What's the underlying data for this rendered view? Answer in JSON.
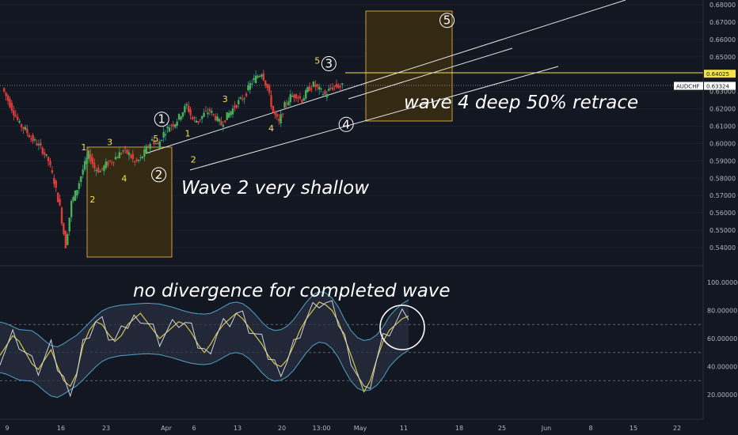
{
  "chart_data": [
    {
      "type": "candlestick",
      "symbol": "AUDCHF",
      "price_axis": {
        "ylim": [
          0.533,
          0.684
        ],
        "ticks": [
          "0.68000",
          "0.67000",
          "0.66000",
          "0.65000",
          "0.64000",
          "0.63000",
          "0.62000",
          "0.61000",
          "0.60000",
          "0.59000",
          "0.58000",
          "0.57000",
          "0.56000",
          "0.55000",
          "0.54000"
        ]
      },
      "price_tags": [
        {
          "value": "0.64025",
          "color": "#f2e24a"
        },
        {
          "label": "AUDCHF",
          "value": "0.63324",
          "color": "#ffffff"
        }
      ],
      "time_axis": {
        "ticks": [
          "9",
          "16",
          "23",
          "Apr",
          "6",
          "13",
          "20",
          "13:00",
          "May",
          "11",
          "18",
          "25",
          "Jun",
          "8",
          "15",
          "22"
        ]
      },
      "ohlc_path_days": [
        0,
        1,
        2,
        3,
        4,
        5,
        6,
        7,
        8,
        9,
        10,
        11,
        12,
        13,
        14,
        15,
        16,
        17,
        18,
        19,
        20,
        21,
        22,
        23,
        24,
        25,
        26,
        27,
        28,
        29,
        30,
        31,
        32,
        33,
        34,
        35,
        36,
        37,
        38,
        39,
        40,
        41,
        42,
        43,
        44,
        45,
        46,
        47,
        48,
        49,
        50,
        51,
        52,
        53,
        54,
        55,
        56,
        57,
        58,
        59
      ],
      "close_path": [
        0.632,
        0.625,
        0.618,
        0.611,
        0.608,
        0.603,
        0.6,
        0.596,
        0.59,
        0.578,
        0.563,
        0.541,
        0.566,
        0.574,
        0.585,
        0.594,
        0.586,
        0.584,
        0.588,
        0.59,
        0.593,
        0.596,
        0.594,
        0.589,
        0.591,
        0.597,
        0.602,
        0.599,
        0.606,
        0.61,
        0.612,
        0.617,
        0.622,
        0.614,
        0.613,
        0.617,
        0.619,
        0.615,
        0.611,
        0.616,
        0.62,
        0.624,
        0.627,
        0.634,
        0.638,
        0.641,
        0.632,
        0.618,
        0.612,
        0.622,
        0.627,
        0.628,
        0.625,
        0.631,
        0.634,
        0.631,
        0.628,
        0.632,
        0.633,
        0.633
      ],
      "wave_labels": [
        {
          "text": "1",
          "date_day": 14,
          "price": 0.596
        },
        {
          "text": "2",
          "date_day": 15.5,
          "price": 0.566
        },
        {
          "text": "3",
          "date_day": 18.5,
          "price": 0.599
        },
        {
          "text": "4",
          "date_day": 21,
          "price": 0.578
        },
        {
          "text": "5",
          "date_day": 26.5,
          "price": 0.601
        },
        {
          "text": "1",
          "date_day": 32,
          "price": 0.604
        },
        {
          "text": "2",
          "date_day": 33,
          "price": 0.589
        },
        {
          "text": "3",
          "date_day": 38.5,
          "price": 0.624
        },
        {
          "text": "4",
          "date_day": 46.5,
          "price": 0.607
        },
        {
          "text": "5",
          "date_day": 54.5,
          "price": 0.646
        }
      ],
      "major_waves": [
        {
          "text": "1",
          "date_day": 27.5,
          "price": 0.614
        },
        {
          "text": "2",
          "date_day": 27,
          "price": 0.582
        },
        {
          "text": "3",
          "date_day": 56.5,
          "price": 0.646
        },
        {
          "text": "4",
          "date_day": 59.5,
          "price": 0.611
        },
        {
          "text": "5",
          "date_day": 77,
          "price": 0.671
        }
      ],
      "annotations": [
        "Wave 2 very shallow",
        "wave 4  deep 50% retrace"
      ]
    },
    {
      "type": "line",
      "ylim": [
        10,
        103
      ],
      "ticks": [
        "100.00000",
        "80.00000",
        "60.00000",
        "40.00000",
        "20.00000"
      ],
      "levels": [
        70,
        50,
        30
      ],
      "annotation": "no divergence for completed wave",
      "oscillator": [
        48,
        55,
        62,
        58,
        50,
        42,
        38,
        45,
        52,
        40,
        30,
        26,
        35,
        55,
        66,
        72,
        70,
        63,
        58,
        62,
        70,
        74,
        78,
        72,
        66,
        60,
        64,
        68,
        72,
        70,
        64,
        56,
        50,
        56,
        64,
        70,
        74,
        78,
        74,
        68,
        62,
        56,
        48,
        42,
        40,
        45,
        55,
        66,
        74,
        80,
        86,
        84,
        80,
        72,
        60,
        48,
        35,
        22,
        30,
        45,
        58,
        66,
        70,
        74,
        76
      ]
    }
  ]
}
